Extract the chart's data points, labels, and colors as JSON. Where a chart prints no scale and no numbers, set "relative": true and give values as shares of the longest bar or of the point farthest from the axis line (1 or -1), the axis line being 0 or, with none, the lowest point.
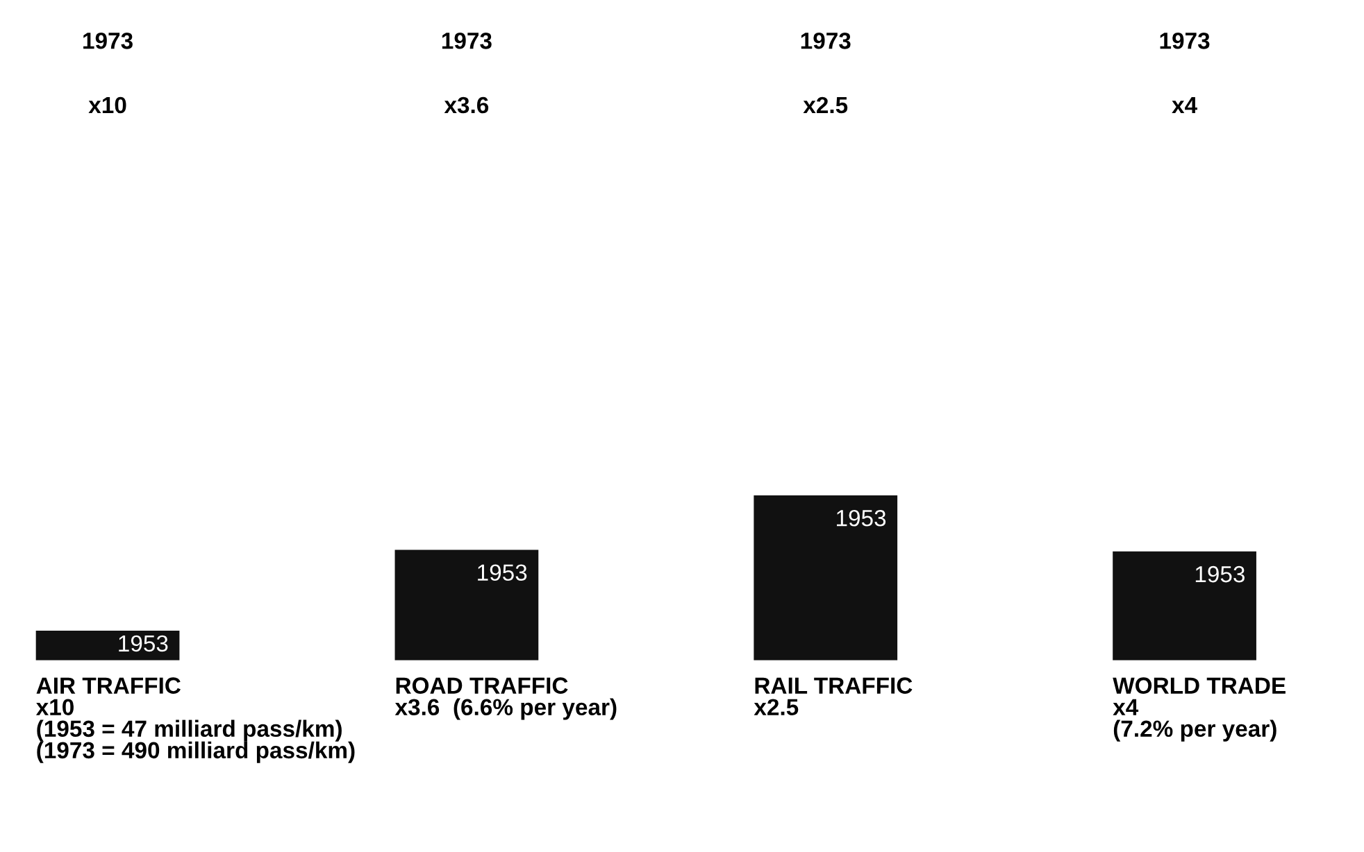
{
  "chart_data": {
    "type": "bar",
    "relative": true,
    "categories": [
      "AIR TRAFFIC\nx10\n(1953 = 47 milliard pass/km)\n(1973 = 490 milliard pass/km)",
      "ROAD TRAFFIC\nx3.6  (6.6% per year)",
      "RAIL TRAFFIC\nx2.5",
      "WORLD TRADE\nx4\n(7.2% per year)"
    ],
    "values": [
      0.18,
      0.67,
      1,
      0.66
    ],
    "color": "#111111",
    "annotations": [
      {
        "text": "1953",
        "x": "AIR TRAFFIC\nx10\n(1953 = 47 milliard pass/km)\n(1973 = 490 milliard pass/km)",
        "y": 0.18
      },
      {
        "text": "1953",
        "x": "ROAD TRAFFIC\nx3.6  (6.6% per year)",
        "y": 0.67
      },
      {
        "text": "1953",
        "x": "RAIL TRAFFIC\nx2.5",
        "y": 1
      },
      {
        "text": "1953",
        "x": "WORLD TRADE\nx4\n(7.2% per year)",
        "y": 0.66
      },
      "1973",
      "1973",
      "1973",
      "1973",
      "x10",
      "x3.6",
      "x2.5",
      "x4"
    ]
  }
}
